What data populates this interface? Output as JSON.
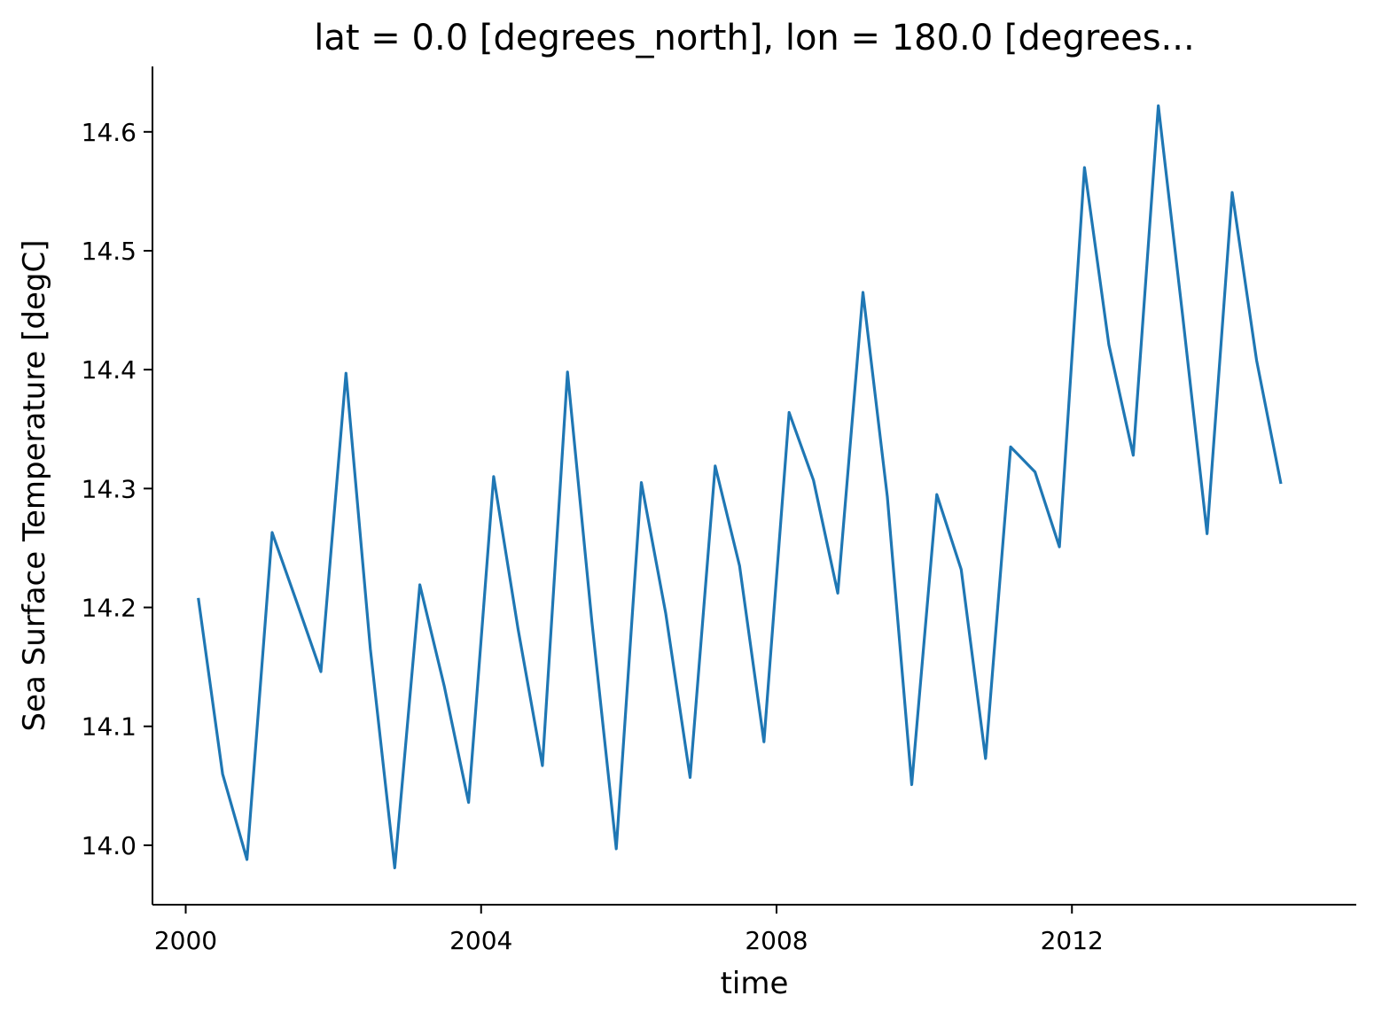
{
  "chart_data": {
    "type": "line",
    "title": "lat = 0.0 [degrees_north], lon = 180.0 [degrees...",
    "xlabel": "time",
    "ylabel": "Sea Surface Temperature [degC]",
    "xlim": [
      1999.55,
      2015.85
    ],
    "ylim": [
      13.95,
      14.655
    ],
    "x_ticks": [
      2000,
      2004,
      2008,
      2012
    ],
    "x_tick_labels": [
      "2000",
      "2004",
      "2008",
      "2012"
    ],
    "y_ticks": [
      14.0,
      14.1,
      14.2,
      14.3,
      14.4,
      14.5,
      14.6
    ],
    "y_tick_labels": [
      "14.0",
      "14.1",
      "14.2",
      "14.3",
      "14.4",
      "14.5",
      "14.6"
    ],
    "grid": false,
    "line_color": "#1f77b4",
    "series": [
      {
        "x": [
          2000.17,
          2000.5,
          2000.83,
          2001.17,
          2001.5,
          2001.83,
          2002.17,
          2002.5,
          2002.83,
          2003.17,
          2003.5,
          2003.83,
          2004.17,
          2004.5,
          2004.83,
          2005.17,
          2005.5,
          2005.83,
          2006.17,
          2006.5,
          2006.83,
          2007.17,
          2007.5,
          2007.83,
          2008.17,
          2008.5,
          2008.83,
          2009.17,
          2009.5,
          2009.83,
          2010.17,
          2010.5,
          2010.83,
          2011.17,
          2011.5,
          2011.83,
          2012.17,
          2012.5,
          2012.83,
          2013.17,
          2013.5,
          2013.83,
          2014.17,
          2014.5,
          2014.83
        ],
        "values": [
          14.208,
          14.06,
          13.988,
          14.263,
          14.205,
          14.146,
          14.397,
          14.165,
          13.981,
          14.219,
          14.134,
          14.036,
          14.31,
          14.182,
          14.067,
          14.398,
          14.188,
          13.997,
          14.305,
          14.195,
          14.057,
          14.319,
          14.235,
          14.087,
          14.364,
          14.307,
          14.212,
          14.465,
          14.293,
          14.051,
          14.295,
          14.232,
          14.073,
          14.335,
          14.314,
          14.251,
          14.57,
          14.421,
          14.328,
          14.622,
          14.445,
          14.262,
          14.549,
          14.408,
          14.304
        ]
      }
    ]
  }
}
